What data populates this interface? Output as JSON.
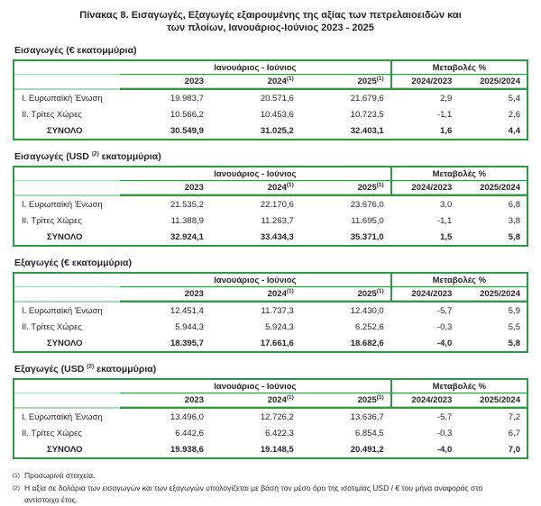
{
  "title": {
    "line1": "Πίνακας 8. Εισαγωγές, Εξαγωγές εξαιρουμένης της αξίας των πετρελαιοειδών και",
    "line2": "των πλοίων, Ιανουάριος-Ιούνιος 2023 - 2025"
  },
  "colors": {
    "table_border_green": "#2e9b44",
    "light_green_rule": "#a9d8b6",
    "text": "#262626"
  },
  "header": {
    "period_label": "Ιανουάριος - Ιούνιος",
    "changes_label": "Μεταβολές %",
    "year_cols": [
      {
        "label": "2023",
        "sup": ""
      },
      {
        "label": "2024",
        "sup": "(1)"
      },
      {
        "label": "2025",
        "sup": "(1)"
      }
    ],
    "change_cols": [
      "2024/2023",
      "2025/2024"
    ]
  },
  "tables": [
    {
      "heading": {
        "prefix": "Εισαγωγές (€ εκατομμύρια)",
        "sup": "",
        "suffix": ""
      },
      "rows": [
        {
          "label": "Ι. Ευρωπαϊκή Ένωση",
          "values": [
            "19.983,7",
            "20.571,6",
            "21.679,6",
            "2,9",
            "5,4"
          ]
        },
        {
          "label": "ΙΙ. Τρίτες Χώρες",
          "values": [
            "10.566,2",
            "10.453,6",
            "10.723,5",
            "-1,1",
            "2,6"
          ]
        },
        {
          "label": "ΣΥΝΟΛΟ",
          "values": [
            "30.549,9",
            "31.025,2",
            "32.403,1",
            "1,6",
            "4,4"
          ]
        }
      ]
    },
    {
      "heading": {
        "prefix": "Εισαγωγές (USD ",
        "sup": "(2)",
        "suffix": " εκατομμύρια)"
      },
      "rows": [
        {
          "label": "Ι. Ευρωπαϊκή Ένωση",
          "values": [
            "21.535,2",
            "22.170,6",
            "23.676,0",
            "3,0",
            "6,8"
          ]
        },
        {
          "label": "ΙΙ. Τρίτες Χώρες",
          "values": [
            "11.388,9",
            "11.263,7",
            "11.695,0",
            "-1,1",
            "3,8"
          ]
        },
        {
          "label": "ΣΥΝΟΛΟ",
          "values": [
            "32.924,1",
            "33.434,3",
            "35.371,0",
            "1,5",
            "5,8"
          ]
        }
      ]
    },
    {
      "heading": {
        "prefix": "Εξαγωγές (€ εκατομμύρια)",
        "sup": "",
        "suffix": ""
      },
      "rows": [
        {
          "label": "Ι. Ευρωπαϊκή Ένωση",
          "values": [
            "12.451,4",
            "11.737,3",
            "12.430,0",
            "-5,7",
            "5,9"
          ]
        },
        {
          "label": "ΙΙ. Τρίτες Χώρες",
          "values": [
            "5.944,3",
            "5.924,3",
            "6.252,6",
            "-0,3",
            "5,5"
          ]
        },
        {
          "label": "ΣΥΝΟΛΟ",
          "values": [
            "18.395,7",
            "17.661,6",
            "18.682,6",
            "-4,0",
            "5,8"
          ]
        }
      ]
    },
    {
      "heading": {
        "prefix": "Εξαγωγές (USD ",
        "sup": "(2)",
        "suffix": " εκατομμύρια)"
      },
      "rows": [
        {
          "label": "Ι. Ευρωπαϊκή Ένωση",
          "values": [
            "13.496,0",
            "12.726,2",
            "13.636,7",
            "-5,7",
            "7,2"
          ]
        },
        {
          "label": "ΙΙ. Τρίτες Χώρες",
          "values": [
            "6.442,6",
            "6.422,3",
            "6.854,5",
            "-0,3",
            "6,7"
          ]
        },
        {
          "label": "ΣΥΝΟΛΟ",
          "values": [
            "19.938,6",
            "19.148,5",
            "20.491,2",
            "-4,0",
            "7,0"
          ]
        }
      ]
    }
  ],
  "footnotes": [
    {
      "marker": "(1)",
      "text": "Προσωρινά στοιχεία."
    },
    {
      "marker": "(2)",
      "text": "Η αξία σε δολάρια των εισαγωγών και των εξαγωγών υπολογίζεται με βάση τον μέσο όρο της ισοτιμίας USD / € του μήνα αναφοράς στο αντίστοιχο έτος."
    }
  ]
}
